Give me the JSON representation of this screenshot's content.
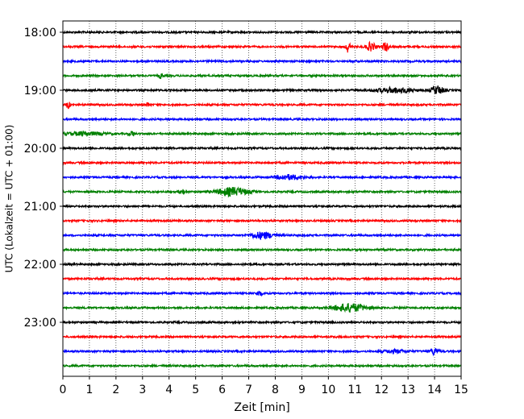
{
  "chart_data": {
    "type": "line",
    "title": "",
    "xlabel": "Zeit  [min]",
    "ylabel": "UTC (Lokalzeit = UTC + 01:00)",
    "xlim": [
      0,
      15
    ],
    "x_ticks": [
      0,
      1,
      2,
      3,
      4,
      5,
      6,
      7,
      8,
      9,
      10,
      11,
      12,
      13,
      14,
      15
    ],
    "y_tick_labels": [
      "18:00",
      "19:00",
      "20:00",
      "21:00",
      "22:00",
      "23:00"
    ],
    "grid": "vertical dotted lines at each minute",
    "legend": "none",
    "colors_cycle": [
      "#000000",
      "#ff0000",
      "#0000ff",
      "#008000"
    ],
    "traces": [
      {
        "start": "18:00",
        "color": "#000000",
        "bursts": []
      },
      {
        "start": "18:15",
        "color": "#ff0000",
        "bursts": [
          {
            "t": 10.75,
            "w": 0.15,
            "a": 7
          },
          {
            "t": 11.6,
            "w": 0.35,
            "a": 5
          },
          {
            "t": 12.15,
            "w": 0.2,
            "a": 6
          }
        ]
      },
      {
        "start": "18:30",
        "color": "#0000ff",
        "bursts": []
      },
      {
        "start": "18:45",
        "color": "#008000",
        "bursts": [
          {
            "t": 3.7,
            "w": 0.15,
            "a": 3
          }
        ]
      },
      {
        "start": "19:00",
        "color": "#000000",
        "bursts": [
          {
            "t": 12.5,
            "w": 1.4,
            "a": 3
          },
          {
            "t": 14.1,
            "w": 0.5,
            "a": 5
          }
        ]
      },
      {
        "start": "19:15",
        "color": "#ff0000",
        "bursts": [
          {
            "t": 0.2,
            "w": 0.15,
            "a": 4
          },
          {
            "t": 3.2,
            "w": 0.1,
            "a": 3
          }
        ]
      },
      {
        "start": "19:30",
        "color": "#0000ff",
        "bursts": []
      },
      {
        "start": "19:45",
        "color": "#008000",
        "bursts": [
          {
            "t": 0.8,
            "w": 1.5,
            "a": 2
          },
          {
            "t": 2.6,
            "w": 0.2,
            "a": 3
          }
        ]
      },
      {
        "start": "20:00",
        "color": "#000000",
        "bursts": []
      },
      {
        "start": "20:15",
        "color": "#ff0000",
        "bursts": []
      },
      {
        "start": "20:30",
        "color": "#0000ff",
        "bursts": [
          {
            "t": 8.5,
            "w": 1.0,
            "a": 3
          }
        ]
      },
      {
        "start": "20:45",
        "color": "#008000",
        "bursts": [
          {
            "t": 6.4,
            "w": 1.2,
            "a": 5
          },
          {
            "t": 4.5,
            "w": 0.2,
            "a": 3
          }
        ]
      },
      {
        "start": "21:00",
        "color": "#000000",
        "bursts": []
      },
      {
        "start": "21:15",
        "color": "#ff0000",
        "bursts": []
      },
      {
        "start": "21:30",
        "color": "#0000ff",
        "bursts": [
          {
            "t": 7.5,
            "w": 0.9,
            "a": 4
          }
        ]
      },
      {
        "start": "21:45",
        "color": "#008000",
        "bursts": []
      },
      {
        "start": "22:00",
        "color": "#000000",
        "bursts": []
      },
      {
        "start": "22:15",
        "color": "#ff0000",
        "bursts": []
      },
      {
        "start": "22:30",
        "color": "#0000ff",
        "bursts": [
          {
            "t": 7.4,
            "w": 0.2,
            "a": 3
          }
        ]
      },
      {
        "start": "22:45",
        "color": "#008000",
        "bursts": [
          {
            "t": 10.8,
            "w": 1.2,
            "a": 5
          }
        ]
      },
      {
        "start": "23:00",
        "color": "#000000",
        "bursts": []
      },
      {
        "start": "23:15",
        "color": "#ff0000",
        "bursts": []
      },
      {
        "start": "23:30",
        "color": "#0000ff",
        "bursts": [
          {
            "t": 14.0,
            "w": 0.3,
            "a": 4
          },
          {
            "t": 12.5,
            "w": 0.8,
            "a": 2
          }
        ]
      },
      {
        "start": "23:45",
        "color": "#008000",
        "bursts": []
      }
    ]
  }
}
